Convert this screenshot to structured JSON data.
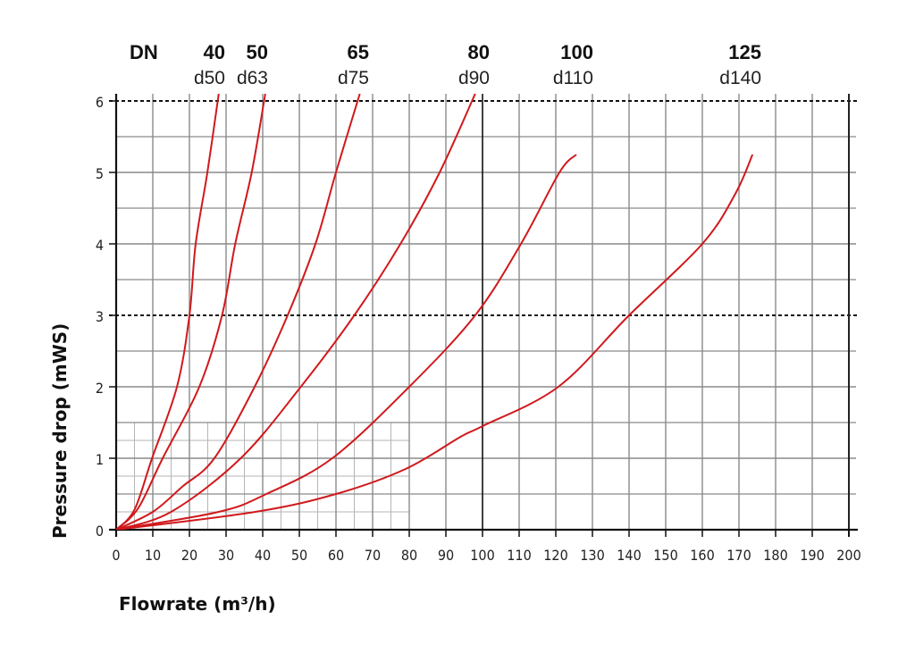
{
  "chart_data": {
    "type": "line",
    "xlabel": "Flowrate (m³/h)",
    "ylabel": "Pressure drop (mWS)",
    "xlim": [
      0,
      200
    ],
    "ylim": [
      0,
      6
    ],
    "x_ticks": [
      "0",
      "10",
      "20",
      "30",
      "40",
      "50",
      "60",
      "70",
      "80",
      "90",
      "100",
      "110",
      "120",
      "130",
      "140",
      "150",
      "160",
      "170",
      "180",
      "190",
      "200"
    ],
    "y_ticks": [
      "0",
      "1",
      "2",
      "3",
      "4",
      "5",
      "6"
    ],
    "grid": true,
    "dashed_reference_lines_y": [
      3,
      6
    ],
    "header_label": "DN",
    "line_color": "#d0191c",
    "series": [
      {
        "name": "40",
        "subname": "d50",
        "points": [
          [
            0,
            0
          ],
          [
            5,
            0.28
          ],
          [
            9.8,
            1
          ],
          [
            16.6,
            2
          ],
          [
            20,
            3
          ],
          [
            21.7,
            4
          ],
          [
            24.9,
            5
          ],
          [
            28,
            6.1
          ]
        ]
      },
      {
        "name": "50",
        "subname": "d63",
        "points": [
          [
            0,
            0
          ],
          [
            6,
            0.3
          ],
          [
            12.7,
            1
          ],
          [
            22.7,
            2
          ],
          [
            28.9,
            3
          ],
          [
            32.5,
            4
          ],
          [
            37,
            5
          ],
          [
            40.7,
            6.1
          ]
        ]
      },
      {
        "name": "65",
        "subname": "d75",
        "points": [
          [
            0,
            0
          ],
          [
            10,
            0.25
          ],
          [
            18,
            0.6
          ],
          [
            26.8,
            1
          ],
          [
            37.8,
            2
          ],
          [
            46.8,
            3
          ],
          [
            54.4,
            4
          ],
          [
            60,
            5
          ],
          [
            66.5,
            6.1
          ]
        ]
      },
      {
        "name": "80",
        "subname": "d90",
        "points": [
          [
            0,
            0
          ],
          [
            15,
            0.25
          ],
          [
            34,
            1
          ],
          [
            50.4,
            2
          ],
          [
            65,
            3
          ],
          [
            77.6,
            4
          ],
          [
            88.3,
            5
          ],
          [
            98,
            6.1
          ]
        ]
      },
      {
        "name": "100",
        "subname": "d110",
        "points": [
          [
            0,
            0
          ],
          [
            28,
            0.25
          ],
          [
            41,
            0.5
          ],
          [
            59,
            1
          ],
          [
            80,
            2
          ],
          [
            98,
            3
          ],
          [
            110.5,
            4
          ],
          [
            121,
            5
          ],
          [
            125.6,
            5.25
          ]
        ]
      },
      {
        "name": "125",
        "subname": "d140",
        "points": [
          [
            0,
            0
          ],
          [
            38,
            0.25
          ],
          [
            60,
            0.5
          ],
          [
            79,
            0.85
          ],
          [
            94,
            1.3
          ],
          [
            100,
            1.45
          ],
          [
            120.7,
            2
          ],
          [
            140,
            3
          ],
          [
            160,
            4
          ],
          [
            169,
            4.7
          ],
          [
            173.7,
            5.25
          ]
        ]
      }
    ]
  }
}
